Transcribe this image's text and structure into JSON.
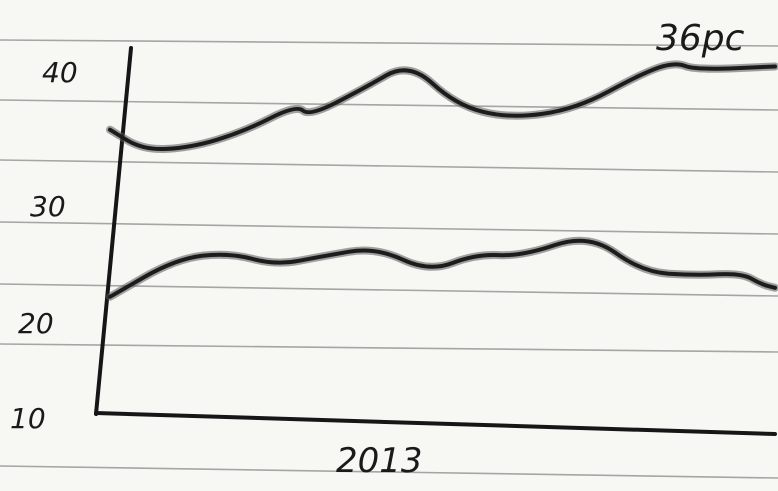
{
  "chart_data": {
    "type": "line",
    "title": "",
    "xlabel": "2013",
    "ylabel": "",
    "ylim": [
      10,
      41
    ],
    "y_ticks": [
      "40",
      "30",
      "20",
      "10"
    ],
    "annotation": "36pc",
    "series": [
      {
        "name": "",
        "color": "#1c1c1c",
        "x": [
          0.0,
          0.05,
          0.12,
          0.2,
          0.28,
          0.3,
          0.38,
          0.45,
          0.52,
          0.6,
          0.7,
          0.8,
          0.85,
          0.88,
          1.0
        ],
        "y": [
          35.0,
          33.2,
          33.4,
          34.8,
          37.2,
          36.2,
          38.6,
          41.0,
          37.2,
          36.0,
          36.8,
          40.0,
          41.0,
          40.3,
          40.6
        ]
      },
      {
        "name": "",
        "color": "#1c1c1c",
        "x": [
          0.0,
          0.1,
          0.18,
          0.25,
          0.32,
          0.4,
          0.48,
          0.55,
          0.62,
          0.72,
          0.8,
          0.88,
          0.95,
          0.98,
          1.0
        ],
        "y": [
          20.2,
          23.6,
          24.1,
          23.0,
          23.8,
          24.6,
          22.4,
          24.0,
          23.8,
          25.8,
          22.4,
          22.1,
          22.3,
          21.3,
          21.0
        ]
      }
    ]
  }
}
